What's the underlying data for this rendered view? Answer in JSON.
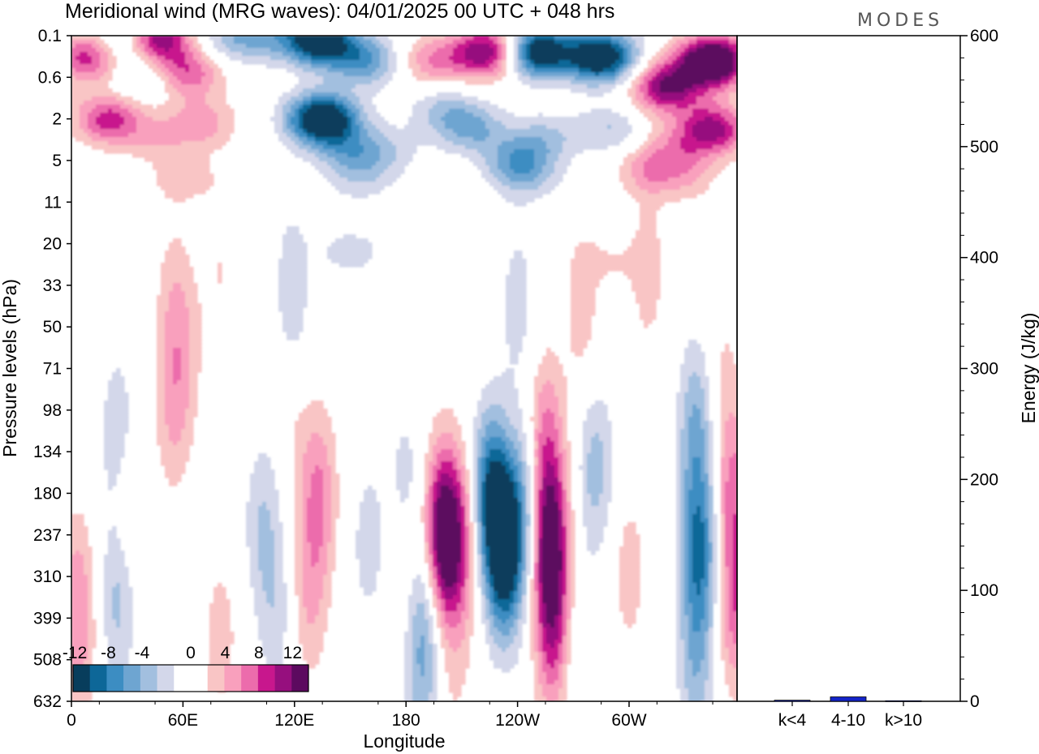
{
  "header": {
    "title": "Meridional wind (MRG waves):  04/01/2025  00 UTC  + 048 hrs",
    "logo": "MODES"
  },
  "colors": {
    "neg_levels": [
      "#083d5c",
      "#0d6798",
      "#3c8dc2",
      "#6ea5d1",
      "#a2bfdf",
      "#d3d7ea"
    ],
    "zero": "#ffffff",
    "pos_levels": [
      "#f9c5c5",
      "#f9a0bd",
      "#ec6cac",
      "#c8178d",
      "#960f7e",
      "#5c0a5f"
    ],
    "energy_bar": "#1424c8"
  },
  "chart_data": [
    {
      "type": "heatmap",
      "title": "Meridional wind (MRG waves):  04/01/2025  00 UTC  + 048 hrs",
      "xlabel": "Longitude",
      "ylabel": "Pressure levels (hPa)",
      "x_ticks": [
        "0",
        "60E",
        "120E",
        "180",
        "120W",
        "60W"
      ],
      "y_ticks": [
        "0.1",
        "0.6",
        "2",
        "5",
        "11",
        "20",
        "33",
        "50",
        "71",
        "98",
        "134",
        "180",
        "237",
        "310",
        "399",
        "508",
        "632"
      ],
      "colorbar": {
        "tick_labels": [
          "-12",
          "-8",
          "-4",
          "0",
          "4",
          "8",
          "12"
        ]
      },
      "features": [
        {
          "lon": 200,
          "p": 237,
          "v": 15
        },
        {
          "lon": 210,
          "p": 250,
          "v": 6
        },
        {
          "lon": 233,
          "p": 260,
          "v": -15
        },
        {
          "lon": 225,
          "p": 180,
          "v": -10
        },
        {
          "lon": 245,
          "p": 200,
          "v": -6
        },
        {
          "lon": 257,
          "p": 250,
          "v": 14
        },
        {
          "lon": 255,
          "p": 120,
          "v": 6
        },
        {
          "lon": 260,
          "p": 450,
          "v": 8
        },
        {
          "lon": 282,
          "p": 150,
          "v": -5
        },
        {
          "lon": 270,
          "p": 500,
          "v": -3
        },
        {
          "lon": 300,
          "p": 300,
          "v": 3
        },
        {
          "lon": 338,
          "p": 260,
          "v": -10
        },
        {
          "lon": 336,
          "p": 110,
          "v": -6
        },
        {
          "lon": 336,
          "p": 520,
          "v": -5
        },
        {
          "lon": 355,
          "p": 170,
          "v": 6
        },
        {
          "lon": 355,
          "p": 380,
          "v": 4
        },
        {
          "lon": 362,
          "p": 330,
          "v": 5
        },
        {
          "lon": 350,
          "p": 70,
          "v": 2
        },
        {
          "lon": 133,
          "p": 180,
          "v": 6
        },
        {
          "lon": 128,
          "p": 350,
          "v": 4
        },
        {
          "lon": 120,
          "p": 100,
          "v": 2
        },
        {
          "lon": 103,
          "p": 220,
          "v": -4
        },
        {
          "lon": 110,
          "p": 400,
          "v": -3
        },
        {
          "lon": 55,
          "p": 98,
          "v": 4
        },
        {
          "lon": 62,
          "p": 60,
          "v": 2
        },
        {
          "lon": 80,
          "p": 450,
          "v": 3
        },
        {
          "lon": 25,
          "p": 120,
          "v": -4
        },
        {
          "lon": 25,
          "p": 350,
          "v": -5
        },
        {
          "lon": 30,
          "p": 200,
          "v": 3
        },
        {
          "lon": 3,
          "p": 350,
          "v": 5
        },
        {
          "lon": 5,
          "p": 550,
          "v": 2
        },
        {
          "lon": 160,
          "p": 250,
          "v": -3
        },
        {
          "lon": 190,
          "p": 400,
          "v": -6
        },
        {
          "lon": 188,
          "p": 600,
          "v": -3
        },
        {
          "lon": 180,
          "p": 160,
          "v": -3
        },
        {
          "lon": 180,
          "p": 300,
          "v": 2
        },
        {
          "lon": 205,
          "p": 550,
          "v": 2
        },
        {
          "lon": 240,
          "p": 40,
          "v": -3
        },
        {
          "lon": 275,
          "p": 45,
          "v": 3
        },
        {
          "lon": 185,
          "p": 45,
          "v": 2
        },
        {
          "lon": 55,
          "p": 40,
          "v": 3
        },
        {
          "lon": 80,
          "p": 28,
          "v": 2
        },
        {
          "lon": 120,
          "p": 50,
          "v": -2
        },
        {
          "lon": 150,
          "p": 22,
          "v": -3
        },
        {
          "lon": 118,
          "p": 28,
          "v": -2
        },
        {
          "lon": 290,
          "p": 25,
          "v": 2
        },
        {
          "lon": 310,
          "p": 28,
          "v": 3
        },
        {
          "lon": 210,
          "p": 28,
          "v": 2
        },
        {
          "lon": 10,
          "p": 0.25,
          "v": 10
        },
        {
          "lon": 45,
          "p": 0.12,
          "v": 14
        },
        {
          "lon": 62,
          "p": 0.5,
          "v": 8
        },
        {
          "lon": 70,
          "p": 2.2,
          "v": 5
        },
        {
          "lon": 20,
          "p": 2.0,
          "v": 9
        },
        {
          "lon": 45,
          "p": 3,
          "v": 3
        },
        {
          "lon": 60,
          "p": 7,
          "v": 3
        },
        {
          "lon": 30,
          "p": 0.14,
          "v": -8
        },
        {
          "lon": 40,
          "p": 0.6,
          "v": -4
        },
        {
          "lon": 80,
          "p": 0.12,
          "v": -3
        },
        {
          "lon": 100,
          "p": 0.1,
          "v": -6
        },
        {
          "lon": 133,
          "p": 0.12,
          "v": -16
        },
        {
          "lon": 158,
          "p": 0.3,
          "v": -8
        },
        {
          "lon": 135,
          "p": 2,
          "v": -17
        },
        {
          "lon": 150,
          "p": 4,
          "v": -5
        },
        {
          "lon": 155,
          "p": 7,
          "v": -3
        },
        {
          "lon": 195,
          "p": 0.3,
          "v": 6
        },
        {
          "lon": 225,
          "p": 0.2,
          "v": 13
        },
        {
          "lon": 200,
          "p": 1.5,
          "v": -4
        },
        {
          "lon": 215,
          "p": 2.5,
          "v": -6
        },
        {
          "lon": 250,
          "p": 0.2,
          "v": -16
        },
        {
          "lon": 285,
          "p": 0.25,
          "v": -16
        },
        {
          "lon": 290,
          "p": 2.5,
          "v": -4
        },
        {
          "lon": 240,
          "p": 5,
          "v": -6
        },
        {
          "lon": 255,
          "p": 3,
          "v": -4
        },
        {
          "lon": 345,
          "p": 0.3,
          "v": 18
        },
        {
          "lon": 320,
          "p": 0.8,
          "v": 12
        },
        {
          "lon": 345,
          "p": 2.5,
          "v": 11
        },
        {
          "lon": 325,
          "p": 4,
          "v": 4
        },
        {
          "lon": 310,
          "p": 6,
          "v": 4
        },
        {
          "lon": 330,
          "p": 7,
          "v": 3
        },
        {
          "lon": 170,
          "p": 4,
          "v": -3
        },
        {
          "lon": 245,
          "p": 7,
          "v": -3
        }
      ]
    },
    {
      "type": "bar",
      "ylabel": "Energy (J/kg)",
      "categories": [
        "k<4",
        "4-10",
        "k>10"
      ],
      "values": [
        1,
        4,
        0.5
      ],
      "ylim": [
        0,
        600
      ],
      "y_ticks": [
        "0",
        "100",
        "200",
        "300",
        "400",
        "500",
        "600"
      ]
    }
  ]
}
